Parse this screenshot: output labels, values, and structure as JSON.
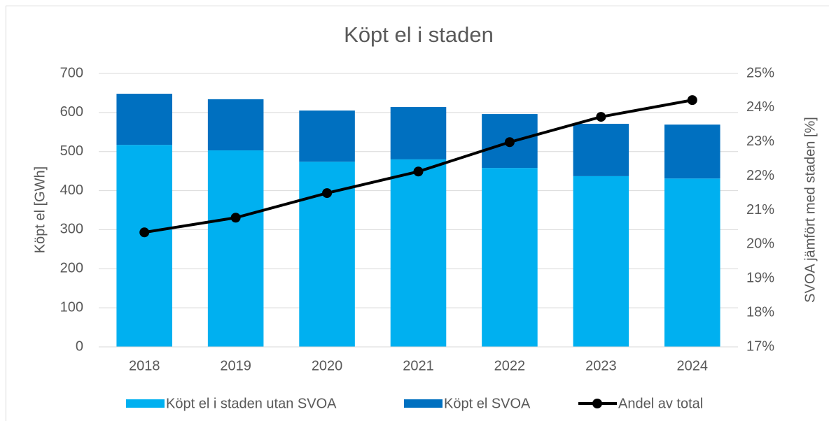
{
  "chart_data": {
    "type": "bar",
    "stacked": true,
    "title": "Köpt el i staden",
    "ylabel": "Köpt el [GWh]",
    "y2label": "SVOA jämfört med staden [%]",
    "categories": [
      "2018",
      "2019",
      "2020",
      "2021",
      "2022",
      "2023",
      "2024"
    ],
    "series": [
      {
        "name": "Köpt el i staden utan SVOA",
        "type": "bar",
        "color": "#00b0f0",
        "values": [
          517,
          503,
          474,
          480,
          458,
          437,
          431
        ]
      },
      {
        "name": "Köpt el SVOA",
        "type": "bar",
        "color": "#0070c0",
        "values": [
          131,
          131,
          131,
          134,
          138,
          134,
          138
        ]
      },
      {
        "name": "Andel av total",
        "type": "line",
        "axis": "y2",
        "color": "#000000",
        "values": [
          20.35,
          20.78,
          21.5,
          22.13,
          22.99,
          23.73,
          24.22
        ]
      }
    ],
    "ylim": [
      0,
      700
    ],
    "yticks": [
      0,
      100,
      200,
      300,
      400,
      500,
      600,
      700
    ],
    "y2lim": [
      17,
      25
    ],
    "y2ticks": [
      {
        "value": 17,
        "label": "17%"
      },
      {
        "value": 18,
        "label": "18%"
      },
      {
        "value": 19,
        "label": "19%"
      },
      {
        "value": 20,
        "label": "20%"
      },
      {
        "value": 21,
        "label": "21%"
      },
      {
        "value": 22,
        "label": "22%"
      },
      {
        "value": 23,
        "label": "23%"
      },
      {
        "value": 24,
        "label": "24%"
      },
      {
        "value": 25,
        "label": "25%"
      }
    ],
    "grid": true,
    "legend": "bottom"
  }
}
